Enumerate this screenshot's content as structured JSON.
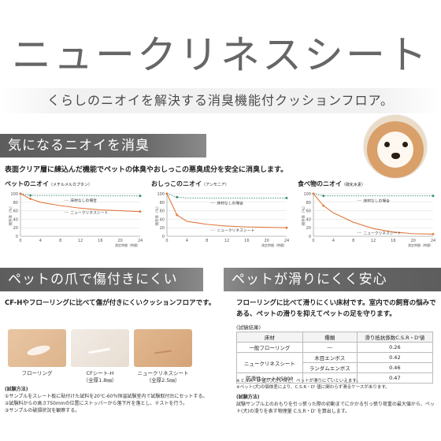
{
  "hero": {
    "title": "ニュークリネスシート",
    "subtitle": "くらしのニオイを解決する消臭機能付クッションフロア。"
  },
  "deodorant": {
    "heading": "気になるニオイを消臭",
    "description": "表面クリア層に練込んだ機能でペットの体臭やおしっこの悪臭成分を安全に消臭します。",
    "charts": [
      {
        "title": "ペットのニオイ",
        "paren": "（メチルメルカプタン）"
      },
      {
        "title": "おしっこのニオイ",
        "paren": "（アンモニア）"
      },
      {
        "title": "食べ物のニオイ",
        "paren": "（硫化水素）"
      }
    ]
  },
  "chart_data": [
    {
      "type": "line",
      "title": "ペットのニオイ",
      "ylabel": "残存率（％）",
      "xlabel": "測定時間（時間）",
      "x": [
        0,
        2,
        4,
        8,
        12,
        16,
        20,
        24
      ],
      "xticks": [
        "0",
        "4",
        "8",
        "12",
        "16",
        "20",
        "24"
      ],
      "yticks": [
        "0",
        "20",
        "40",
        "60",
        "80",
        "100"
      ],
      "ylim": [
        0,
        100
      ],
      "series": [
        {
          "name": "床材なしの場合",
          "values": [
            100,
            96,
            96,
            96,
            96,
            95,
            95,
            95
          ],
          "color": "#2e8b6e",
          "style": "dotted"
        },
        {
          "name": "ニュークリネスシート",
          "values": [
            100,
            88,
            80,
            72,
            66,
            62,
            60,
            58
          ],
          "color": "#e07a3f",
          "style": "solid"
        }
      ]
    },
    {
      "type": "line",
      "title": "おしっこのニオイ",
      "ylabel": "残存率（％）",
      "xlabel": "測定時間（時間）",
      "x": [
        0,
        2,
        4,
        8,
        12,
        16,
        20,
        24
      ],
      "xticks": [
        "0",
        "4",
        "8",
        "12",
        "16",
        "20",
        "24"
      ],
      "yticks": [
        "0",
        "20",
        "40",
        "60",
        "80",
        "100"
      ],
      "ylim": [
        0,
        100
      ],
      "series": [
        {
          "name": "床材なしの場合",
          "values": [
            100,
            92,
            90,
            90,
            90,
            90,
            90,
            90
          ],
          "color": "#2e8b6e",
          "style": "dotted"
        },
        {
          "name": "ニュークリネスシート",
          "values": [
            100,
            50,
            35,
            28,
            24,
            22,
            21,
            20
          ],
          "color": "#e07a3f",
          "style": "solid"
        }
      ]
    },
    {
      "type": "line",
      "title": "食べ物のニオイ",
      "ylabel": "残存率（％）",
      "xlabel": "測定時間（時間）",
      "x": [
        0,
        2,
        4,
        8,
        12,
        16,
        20,
        24
      ],
      "xticks": [
        "0",
        "4",
        "8",
        "12",
        "16",
        "20",
        "24"
      ],
      "yticks": [
        "0",
        "20",
        "40",
        "60",
        "80",
        "100"
      ],
      "ylim": [
        0,
        100
      ],
      "series": [
        {
          "name": "床材なしの場合",
          "values": [
            100,
            95,
            95,
            95,
            95,
            95,
            95,
            95
          ],
          "color": "#2e8b6e",
          "style": "dotted"
        },
        {
          "name": "ニュークリネスシート",
          "values": [
            100,
            72,
            55,
            33,
            18,
            10,
            6,
            5
          ],
          "color": "#e07a3f",
          "style": "solid"
        }
      ]
    }
  ],
  "scratch": {
    "heading": "ペットの爪で傷付きにくい",
    "description": "CF-Hやフローリングに比べて傷が付きにくいクッションフロアです。",
    "samples": [
      {
        "label": "フローリング",
        "sub": ""
      },
      {
        "label": "CFシート-H",
        "sub": "（全厚1.8㎜）"
      },
      {
        "label": "ニュークリネスシート",
        "sub": "（全厚2.5㎜）"
      }
    ],
    "method_heading": "(試験方法)",
    "method_lines": [
      "①サンプルをスレート板に貼付けた試料を20℃-60％恒温試験室内で試験取付台にセットする。",
      "②試験料からの高さ750mmの位置にストッパーから落下片を落とし、テストを行う。",
      "③サンプルの破損状況を観察する。"
    ]
  },
  "slip": {
    "heading": "ペットが滑りにくく安心",
    "description": "フローリングに比べて滑りにくい床材です。室内での飼育の悩みである、ペットの滑りを抑えてペットの足を守ります。",
    "results_heading": "(試験結果)",
    "table": {
      "headers": [
        "床材",
        "種類",
        "滑り抵抗係数C.S.R・D'値"
      ],
      "rows": [
        [
          "一般フローリング",
          "―",
          "0.26"
        ],
        [
          "ニュークリネスシート",
          "木目エンボス",
          "0.42"
        ],
        [
          "",
          "ランダムエンボス",
          "0.46"
        ],
        [
          "防滑性シートNS800",
          "―",
          "0.47"
        ]
      ]
    },
    "notes": [
      "※ C.S.R・D'値が大きいほど、ペットが滑りにくいといえます。",
      "※ペット(犬)の個体差により、C.S.R・D' 値に関わらず滑るケースがあります。"
    ],
    "method_heading": "(試験方法)",
    "method_text": "試験サンプル上のおもりを引っ張った際の初動までにかかる引っ張り荷重の最大値から、ペット(犬)の滑りを表す物理量 C.S.R・D' を算出します。"
  }
}
